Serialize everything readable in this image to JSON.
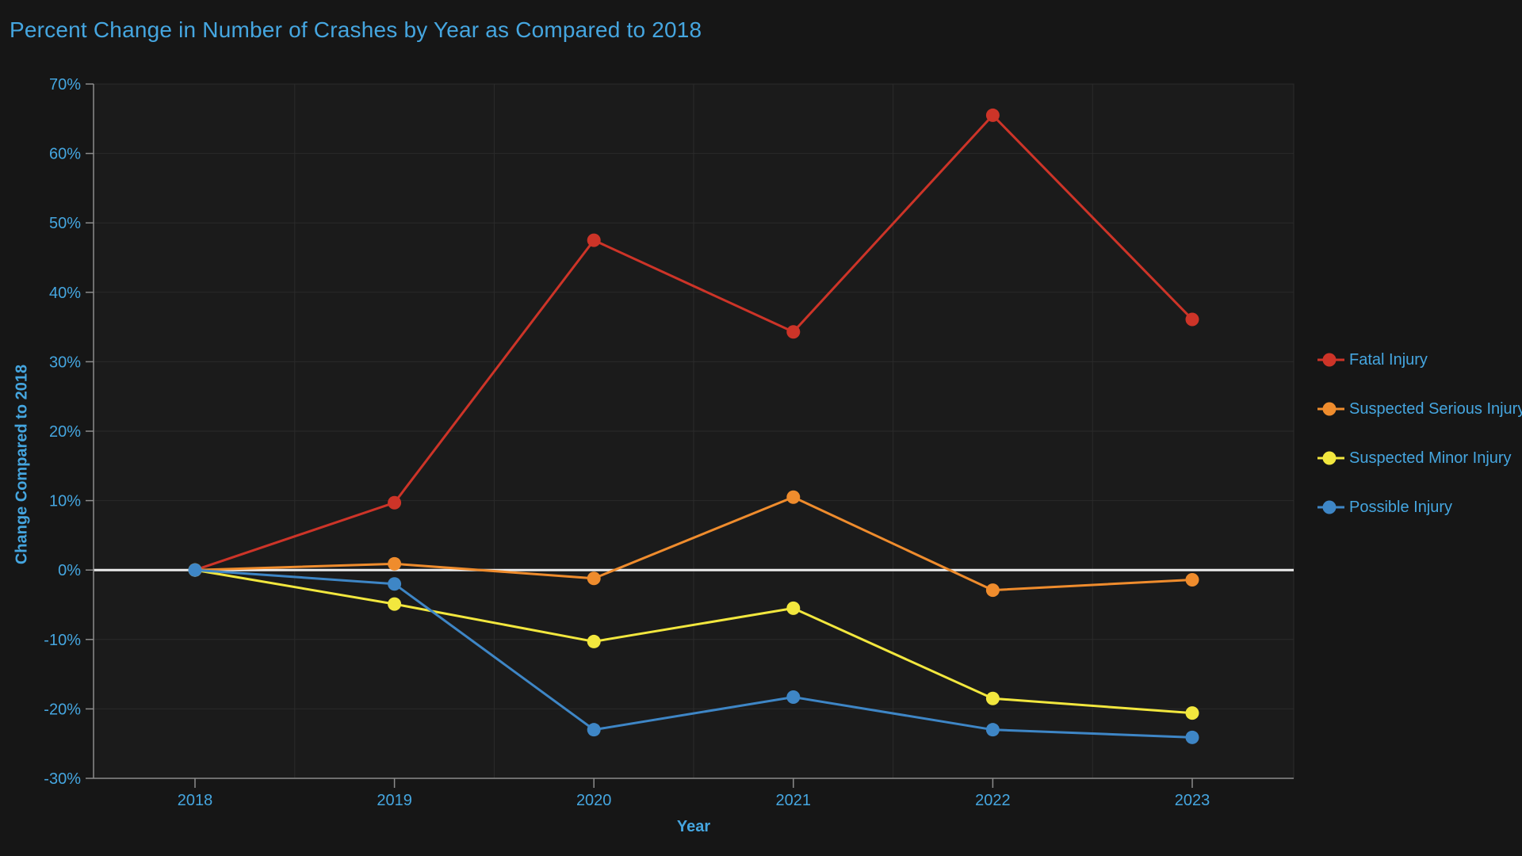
{
  "chart": {
    "colors": {
      "background": "#161616",
      "plot_background": "#1b1b1b",
      "gridline": "#2b2b2b",
      "axis_line": "#8c8c8c",
      "zero_line": "#ececec",
      "text_blue": "#45a6e0"
    }
  },
  "chart_data": {
    "type": "line",
    "title": "Percent Change in Number of Crashes by Year as Compared to 2018",
    "xlabel": "Year",
    "ylabel": "Change Compared to 2018",
    "x": [
      "2018",
      "2019",
      "2020",
      "2021",
      "2022",
      "2023"
    ],
    "ylim": [
      -30,
      70
    ],
    "y_tick_step": 10,
    "y_tick_labels": [
      "70%",
      "60%",
      "50%",
      "40%",
      "30%",
      "20%",
      "10%",
      "0%",
      "-10%",
      "-20%",
      "-30%"
    ],
    "grid": true,
    "zero_reference_line": true,
    "legend_position": "right",
    "series": [
      {
        "name": "Fatal Injury",
        "color": "#cd3428",
        "values": [
          0,
          9.7,
          47.5,
          34.3,
          65.5,
          36.1
        ]
      },
      {
        "name": "Suspected Serious Injury",
        "color": "#ef8c2d",
        "values": [
          0,
          0.9,
          -1.2,
          10.5,
          -2.9,
          -1.4
        ]
      },
      {
        "name": "Suspected Minor Injury",
        "color": "#f2e73e",
        "values": [
          0,
          -4.9,
          -10.3,
          -5.5,
          -18.5,
          -20.6
        ]
      },
      {
        "name": "Possible Injury",
        "color": "#3e86c6",
        "values": [
          0,
          -2.0,
          -23.0,
          -18.3,
          -23.0,
          -24.1
        ]
      }
    ]
  }
}
